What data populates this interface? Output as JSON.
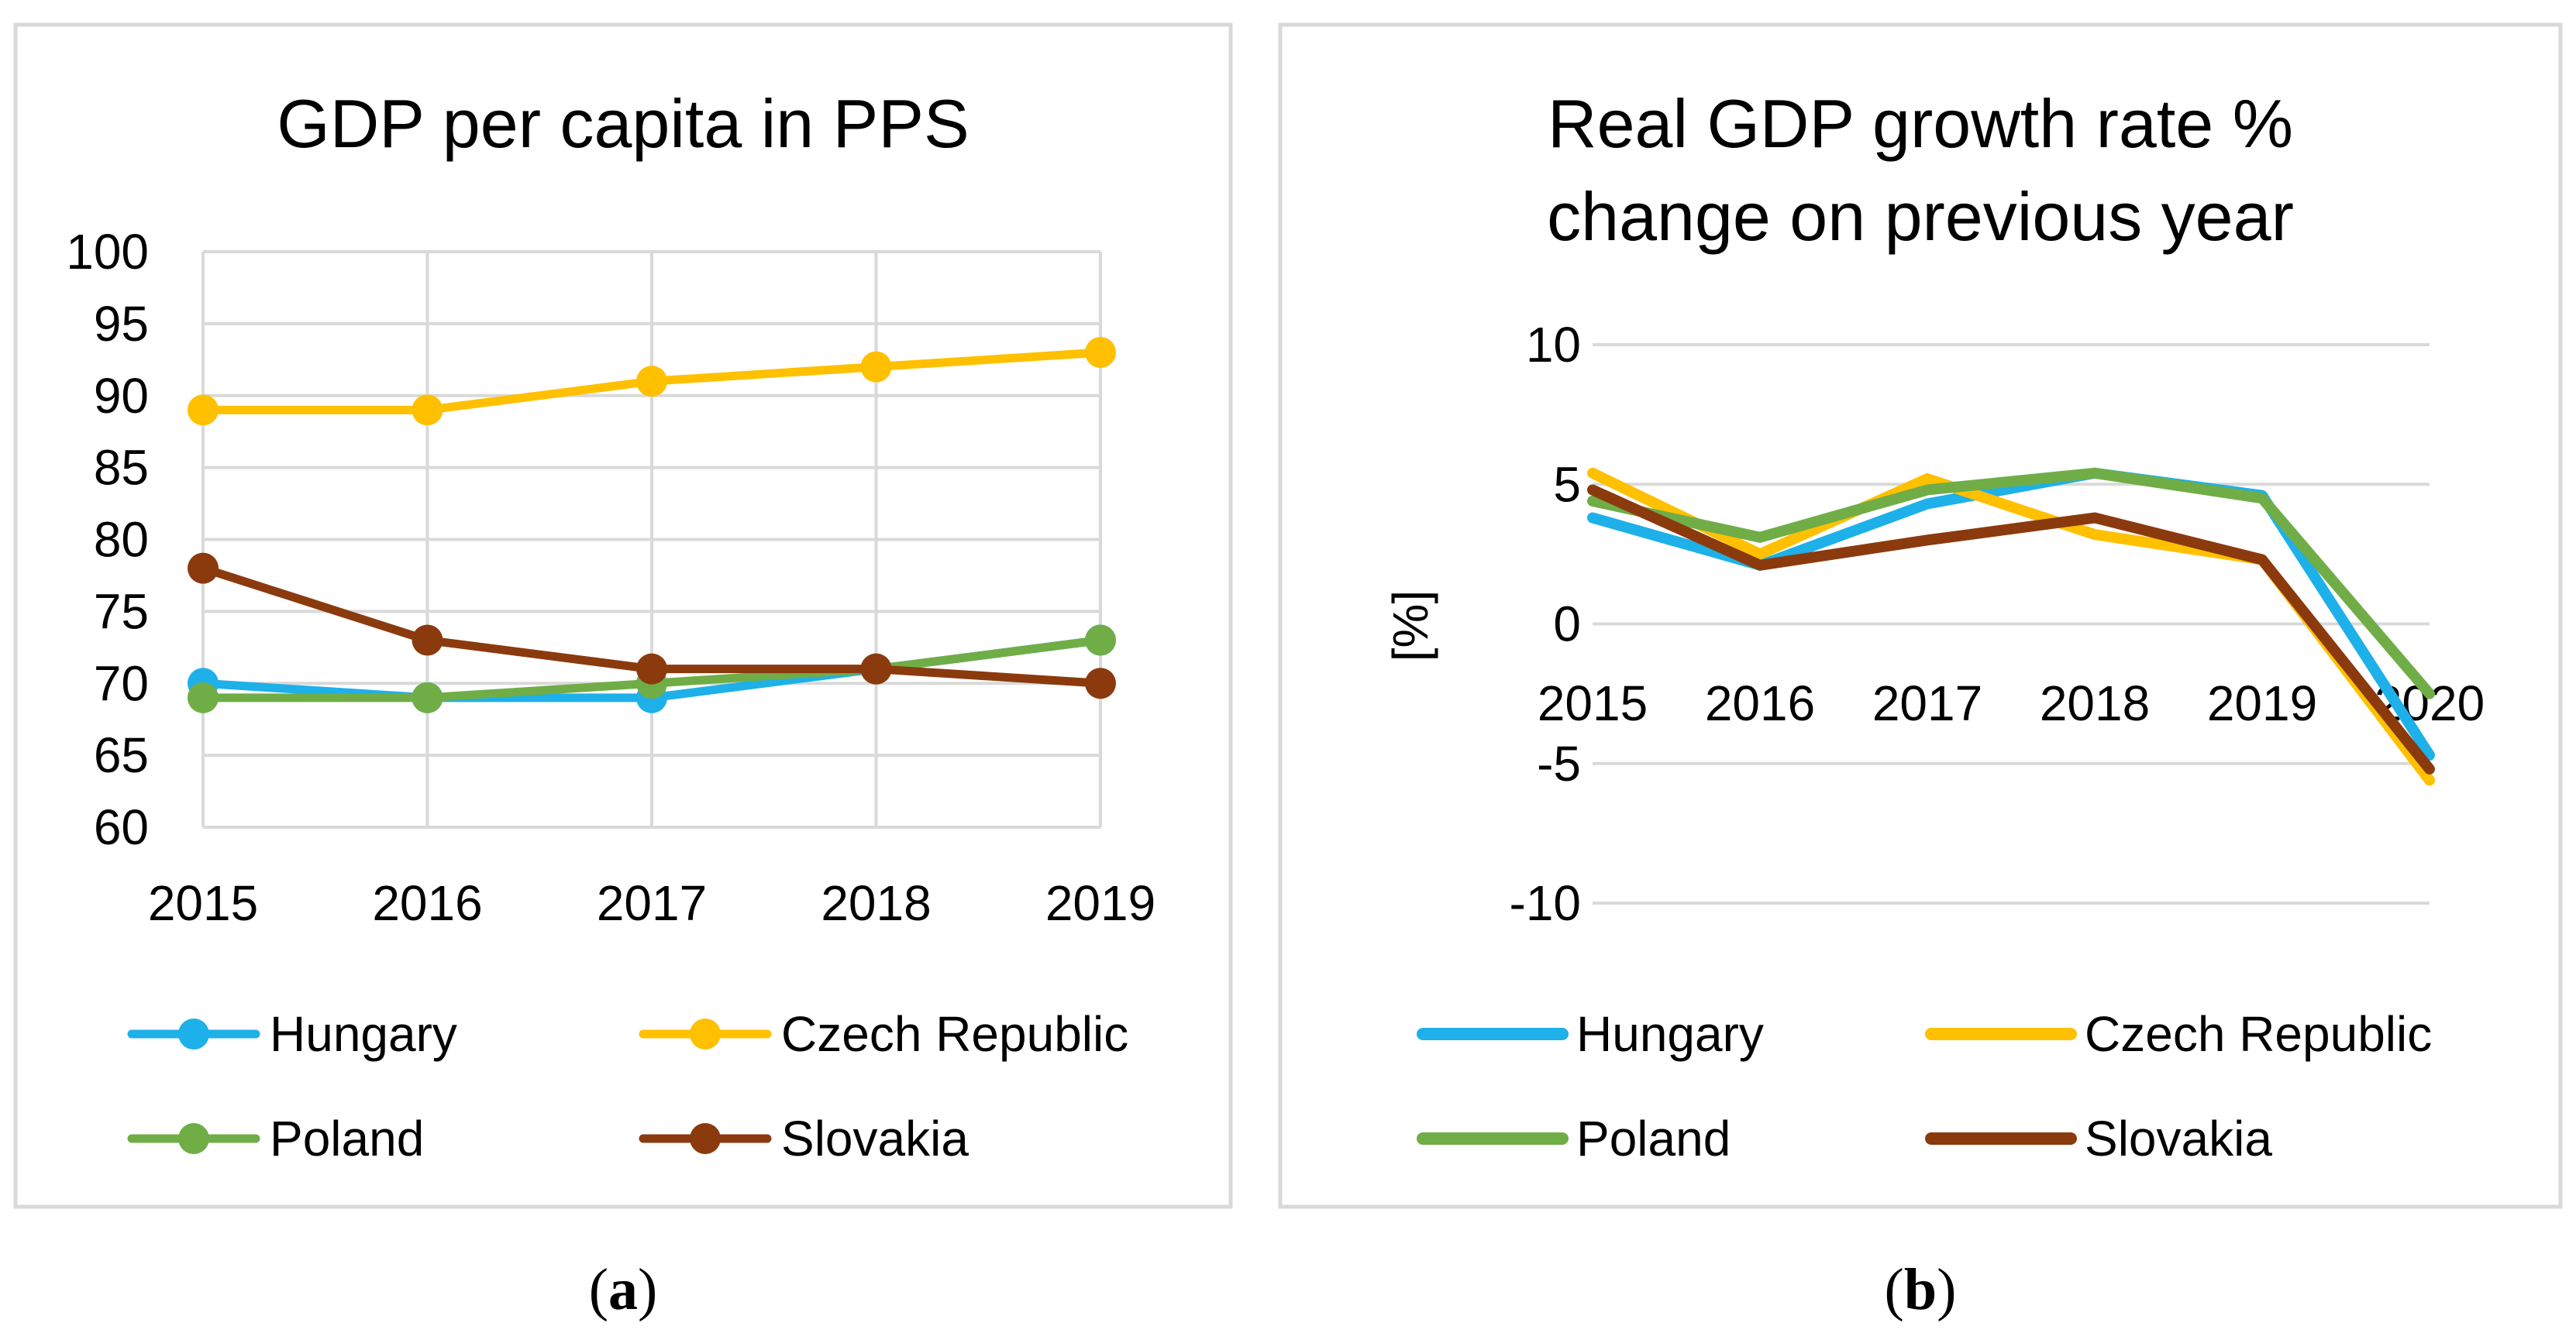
{
  "colors": {
    "Hungary": "#1eb0e8",
    "Czech Republic": "#ffc000",
    "Poland": "#70ad47",
    "Slovakia": "#8b3a0e"
  },
  "chart_data": [
    {
      "type": "line",
      "title": "GDP per capita in PPS",
      "caption_open": "(",
      "caption_label": "a",
      "caption_close": ")",
      "x": [
        "2015",
        "2016",
        "2017",
        "2018",
        "2019"
      ],
      "ylim": [
        60,
        100
      ],
      "yticks": [
        "100",
        "95",
        "90",
        "85",
        "80",
        "75",
        "70",
        "65",
        "60"
      ],
      "xlabel": "",
      "ylabel": "",
      "markers": true,
      "series": [
        {
          "name": "Hungary",
          "values": [
            70,
            69,
            69,
            71,
            73
          ]
        },
        {
          "name": "Czech Republic",
          "values": [
            89,
            89,
            91,
            92,
            93
          ]
        },
        {
          "name": "Poland",
          "values": [
            69,
            69,
            70,
            71,
            73
          ]
        },
        {
          "name": "Slovakia",
          "values": [
            78,
            73,
            71,
            71,
            70
          ]
        }
      ],
      "legend": [
        "Hungary",
        "Czech Republic",
        "Poland",
        "Slovakia"
      ],
      "legend_position": "bottom"
    },
    {
      "type": "line",
      "title_line1": "Real GDP growth rate %",
      "title_line2": "change on previous year",
      "caption_open": "(",
      "caption_label": "b",
      "caption_close": ")",
      "x": [
        "2015",
        "2016",
        "2017",
        "2018",
        "2019",
        "2020"
      ],
      "ylim": [
        -10,
        10
      ],
      "yticks": [
        "10",
        "5",
        "0",
        "-5",
        "-10"
      ],
      "xlabel": "",
      "ylabel": "[%]",
      "markers": false,
      "series": [
        {
          "name": "Hungary",
          "values": [
            3.8,
            2.1,
            4.3,
            5.4,
            4.6,
            -4.7
          ]
        },
        {
          "name": "Czech Republic",
          "values": [
            5.4,
            2.5,
            5.2,
            3.2,
            2.3,
            -5.6
          ]
        },
        {
          "name": "Poland",
          "values": [
            4.4,
            3.1,
            4.8,
            5.4,
            4.5,
            -2.5
          ]
        },
        {
          "name": "Slovakia",
          "values": [
            4.8,
            2.1,
            3.0,
            3.8,
            2.3,
            -5.2
          ]
        }
      ],
      "legend": [
        "Hungary",
        "Czech Republic",
        "Poland",
        "Slovakia"
      ],
      "legend_position": "bottom"
    }
  ]
}
